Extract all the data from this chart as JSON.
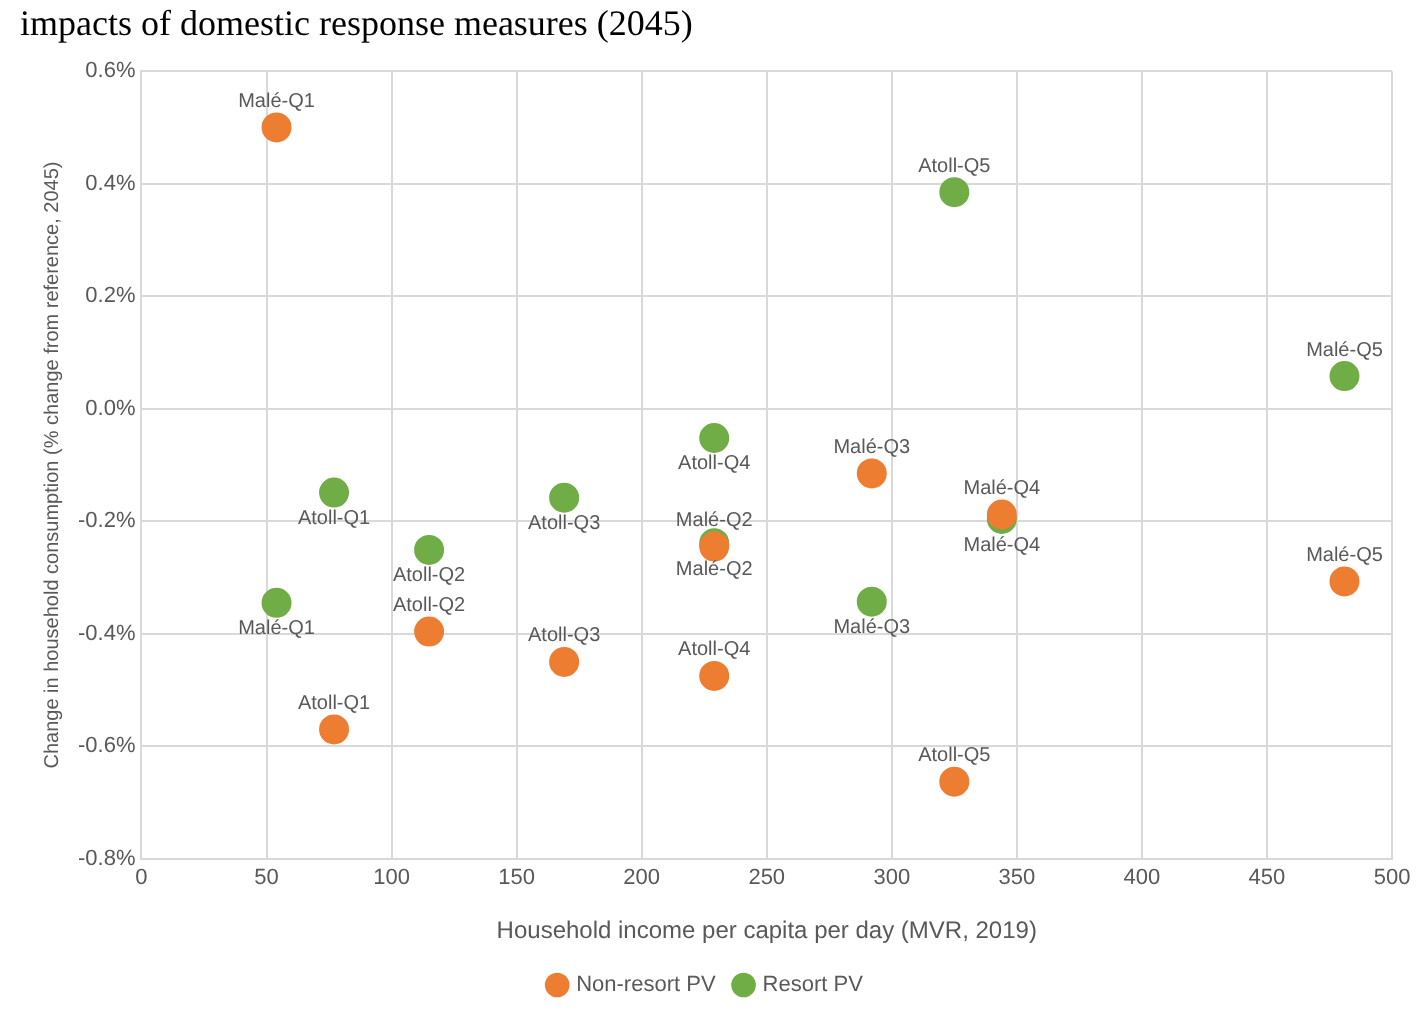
{
  "chart_data": {
    "type": "scatter",
    "title": "impacts of domestic response measures (2045)",
    "xlabel": "Household income per capita per day (MVR, 2019)",
    "ylabel": "Change in household consumption (% change from reference, 2045)",
    "series": [
      {
        "name": "Non-resort PV",
        "color": "#ed7d31",
        "x": [
          54,
          77,
          115,
          169,
          229,
          325,
          229,
          292,
          344,
          481
        ],
        "values": [
          0.5,
          -0.57,
          -0.396,
          -0.45,
          -0.475,
          -0.663,
          -0.245,
          -0.115,
          -0.188,
          -0.307
        ],
        "value_labels": [
          "Malé-Q1",
          "Atoll-Q1",
          "Atoll-Q2",
          "Atoll-Q3",
          "Atoll-Q4",
          "Atoll-Q5",
          "Malé-Q2",
          "Malé-Q3",
          "Malé-Q4",
          "Malé-Q5"
        ]
      },
      {
        "name": "Resort PV",
        "color": "#70ad47",
        "x": [
          54,
          77,
          115,
          169,
          229,
          325,
          229,
          292,
          344,
          481
        ],
        "values": [
          -0.345,
          -0.149,
          -0.251,
          -0.158,
          -0.052,
          0.385,
          -0.239,
          -0.343,
          -0.196,
          0.058
        ],
        "value_labels": [
          "Malé-Q1",
          "Atoll-Q1",
          "Atoll-Q2",
          "Atoll-Q3",
          "Atoll-Q4",
          "Atoll-Q5",
          "Malé-Q2",
          "Malé-Q3",
          "Malé-Q4",
          "Malé-Q5"
        ]
      }
    ],
    "xlim": [
      0,
      500
    ],
    "xticks": [
      0,
      50,
      100,
      150,
      200,
      250,
      300,
      350,
      400,
      450,
      500
    ],
    "ylim": [
      -0.8,
      0.6
    ],
    "yticks": [
      {
        "value": -0.8,
        "label": "-0.8%"
      },
      {
        "value": -0.6,
        "label": "-0.6%"
      },
      {
        "value": -0.4,
        "label": "-0.4%"
      },
      {
        "value": -0.2,
        "label": "-0.2%"
      },
      {
        "value": 0,
        "label": "0.0%"
      },
      {
        "value": 0.2,
        "label": "0.2%"
      },
      {
        "value": 0.4,
        "label": "0.4%"
      },
      {
        "value": 0.6,
        "label": "0.6%"
      }
    ],
    "grid": true,
    "legend": "bottom",
    "marker": "circle"
  }
}
